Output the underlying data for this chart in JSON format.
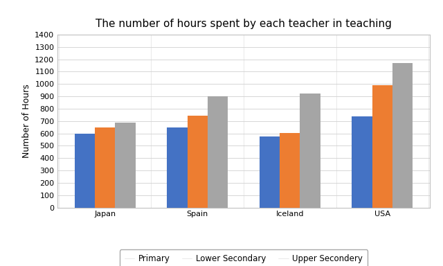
{
  "title": "The number of hours spent by each teacher in teaching",
  "ylabel": "Number of Hours",
  "countries": [
    "Japan",
    "Spain",
    "Iceland",
    "USA"
  ],
  "series": {
    "Primary": [
      600,
      650,
      575,
      740
    ],
    "Lower Secondary": [
      650,
      745,
      605,
      990
    ],
    "Upper Secondery": [
      690,
      900,
      920,
      1170
    ]
  },
  "colors": {
    "Primary": "#4472c4",
    "Lower Secondary": "#ed7d31",
    "Upper Secondery": "#a5a5a5"
  },
  "ylim": [
    0,
    1400
  ],
  "yticks": [
    0,
    100,
    200,
    300,
    400,
    500,
    600,
    700,
    800,
    900,
    1000,
    1100,
    1200,
    1300,
    1400
  ],
  "bar_width": 0.22,
  "legend_labels": [
    "Primary",
    "Lower Secondary",
    "Upper Secondery"
  ],
  "background_color": "#ffffff",
  "title_fontsize": 11,
  "tick_fontsize": 8,
  "ylabel_fontsize": 9
}
